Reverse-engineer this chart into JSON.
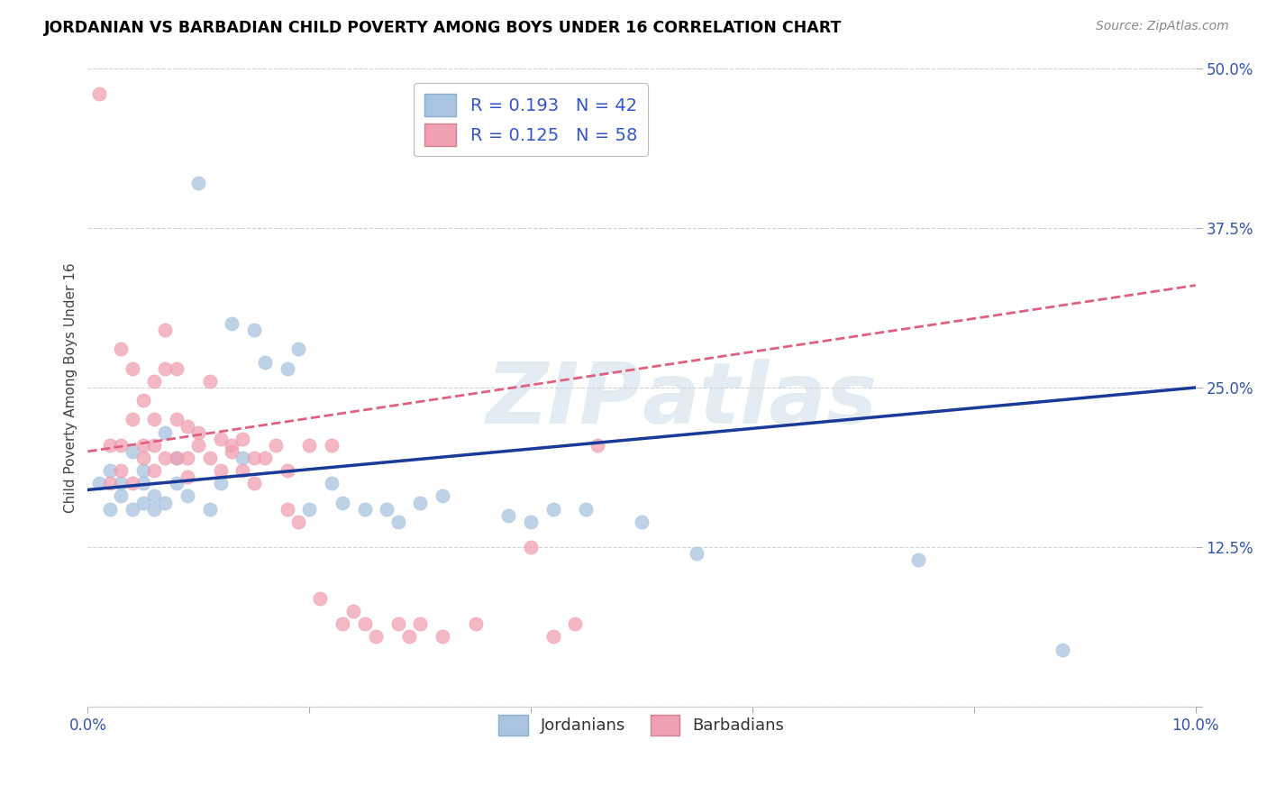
{
  "title": "JORDANIAN VS BARBADIAN CHILD POVERTY AMONG BOYS UNDER 16 CORRELATION CHART",
  "source": "Source: ZipAtlas.com",
  "ylabel": "Child Poverty Among Boys Under 16",
  "legend_label_1": "Jordanians",
  "legend_label_2": "Barbadians",
  "r1": 0.193,
  "n1": 42,
  "r2": 0.125,
  "n2": 58,
  "color_blue": "#A8C4E0",
  "color_pink": "#F0A0B0",
  "line_color_blue": "#1A3A99",
  "line_color_pink": "#E06080",
  "xlim": [
    0.0,
    0.1
  ],
  "ylim": [
    0.0,
    0.5
  ],
  "xticks": [
    0.0,
    0.02,
    0.04,
    0.06,
    0.08,
    0.1
  ],
  "xtick_labels": [
    "0.0%",
    "",
    "",
    "",
    "",
    "10.0%"
  ],
  "ytick_labels": [
    "",
    "12.5%",
    "25.0%",
    "37.5%",
    "50.0%"
  ],
  "yticks": [
    0.0,
    0.125,
    0.25,
    0.375,
    0.5
  ],
  "jordanians_x": [
    0.001,
    0.002,
    0.002,
    0.003,
    0.003,
    0.004,
    0.004,
    0.005,
    0.005,
    0.005,
    0.006,
    0.006,
    0.007,
    0.007,
    0.008,
    0.008,
    0.009,
    0.01,
    0.011,
    0.012,
    0.013,
    0.014,
    0.015,
    0.016,
    0.018,
    0.019,
    0.02,
    0.022,
    0.023,
    0.025,
    0.027,
    0.028,
    0.03,
    0.032,
    0.038,
    0.04,
    0.042,
    0.045,
    0.05,
    0.055,
    0.075,
    0.088
  ],
  "jordanians_y": [
    0.175,
    0.185,
    0.155,
    0.165,
    0.175,
    0.2,
    0.155,
    0.185,
    0.175,
    0.16,
    0.165,
    0.155,
    0.215,
    0.16,
    0.195,
    0.175,
    0.165,
    0.41,
    0.155,
    0.175,
    0.3,
    0.195,
    0.295,
    0.27,
    0.265,
    0.28,
    0.155,
    0.175,
    0.16,
    0.155,
    0.155,
    0.145,
    0.16,
    0.165,
    0.15,
    0.145,
    0.155,
    0.155,
    0.145,
    0.12,
    0.115,
    0.045
  ],
  "barbadians_x": [
    0.001,
    0.002,
    0.002,
    0.003,
    0.003,
    0.003,
    0.004,
    0.004,
    0.004,
    0.005,
    0.005,
    0.005,
    0.006,
    0.006,
    0.006,
    0.006,
    0.007,
    0.007,
    0.007,
    0.008,
    0.008,
    0.008,
    0.009,
    0.009,
    0.009,
    0.01,
    0.01,
    0.011,
    0.011,
    0.012,
    0.012,
    0.013,
    0.013,
    0.014,
    0.014,
    0.015,
    0.015,
    0.016,
    0.017,
    0.018,
    0.018,
    0.019,
    0.02,
    0.021,
    0.022,
    0.023,
    0.024,
    0.025,
    0.026,
    0.028,
    0.029,
    0.03,
    0.032,
    0.035,
    0.04,
    0.042,
    0.044,
    0.046
  ],
  "barbadians_y": [
    0.48,
    0.205,
    0.175,
    0.28,
    0.205,
    0.185,
    0.265,
    0.225,
    0.175,
    0.24,
    0.205,
    0.195,
    0.225,
    0.255,
    0.205,
    0.185,
    0.295,
    0.265,
    0.195,
    0.265,
    0.225,
    0.195,
    0.22,
    0.195,
    0.18,
    0.215,
    0.205,
    0.255,
    0.195,
    0.185,
    0.21,
    0.205,
    0.2,
    0.185,
    0.21,
    0.195,
    0.175,
    0.195,
    0.205,
    0.185,
    0.155,
    0.145,
    0.205,
    0.085,
    0.205,
    0.065,
    0.075,
    0.065,
    0.055,
    0.065,
    0.055,
    0.065,
    0.055,
    0.065,
    0.125,
    0.055,
    0.065,
    0.205
  ]
}
